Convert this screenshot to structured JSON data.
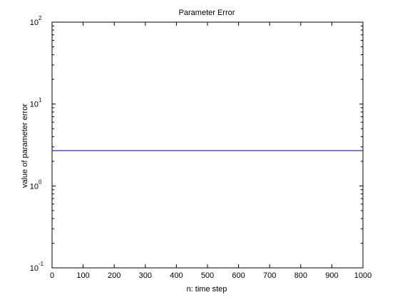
{
  "chart_data": {
    "type": "line",
    "title": "Parameter Error",
    "xlabel": "n: time step",
    "ylabel": "value of parameter error",
    "xlim": [
      0,
      1000
    ],
    "ylim": [
      0.1,
      100
    ],
    "y_scale": "log",
    "grid": false,
    "x_ticks": [
      0,
      100,
      200,
      300,
      400,
      500,
      600,
      700,
      800,
      900,
      1000
    ],
    "y_ticks": [
      {
        "value": 0.1,
        "base": "10",
        "exp": "-1"
      },
      {
        "value": 1,
        "base": "10",
        "exp": "0"
      },
      {
        "value": 10,
        "base": "10",
        "exp": "1"
      },
      {
        "value": 100,
        "base": "10",
        "exp": "2"
      }
    ],
    "series": [
      {
        "color": "#000080",
        "x": [
          0,
          1000
        ],
        "y": [
          2.7,
          2.7
        ]
      }
    ]
  }
}
